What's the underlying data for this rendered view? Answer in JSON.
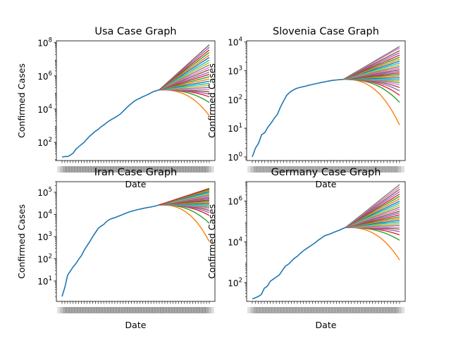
{
  "chart_data": [
    {
      "type": "line",
      "title": "Usa Case Graph",
      "xlabel": "Date",
      "ylabel": "Confirmed Cases",
      "yscale": "log",
      "ylim": [
        8,
        130000000
      ],
      "ytick_labels": [
        "10^2",
        "10^4",
        "10^6",
        "10^8"
      ],
      "ytick_values": [
        100,
        10000,
        1000000,
        100000000
      ],
      "x_tick_note": "overlapping unreadable date tick labels",
      "grid": false,
      "history": {
        "color": "#1f77b4",
        "values": [
          13,
          14,
          14,
          17,
          22,
          38,
          55,
          75,
          100,
          160,
          240,
          330,
          470,
          600,
          850,
          1100,
          1500,
          2000,
          2500,
          3100,
          3900,
          5100,
          7500,
          11000,
          16000,
          22000,
          30000,
          38000,
          45000,
          55000,
          65000,
          78000,
          95000,
          115000,
          130000,
          145000
        ]
      },
      "forecast": {
        "start": 145000,
        "end_values": [
          4000,
          25000,
          55000,
          80000,
          110000,
          150000,
          200000,
          270000,
          360000,
          480000,
          650000,
          900000,
          1250000,
          1700000,
          2400000,
          3300000,
          4600000,
          6500000,
          9000000,
          13000000,
          18000000,
          26000000,
          37000000,
          53000000,
          75000000
        ]
      }
    },
    {
      "type": "line",
      "title": "Slovenia Case Graph",
      "xlabel": "Date",
      "ylabel": "Confirmed Cases",
      "yscale": "log",
      "ylim": [
        0.75,
        11000
      ],
      "ytick_labels": [
        "10^0",
        "10^1",
        "10^2",
        "10^3",
        "10^4"
      ],
      "ytick_values": [
        1,
        10,
        100,
        1000,
        10000
      ],
      "x_tick_note": "overlapping unreadable date tick labels",
      "grid": false,
      "history": {
        "color": "#1f77b4",
        "values": [
          1,
          2,
          3,
          6,
          7,
          11,
          15,
          22,
          30,
          55,
          90,
          140,
          180,
          210,
          240,
          260,
          275,
          290,
          310,
          330,
          350,
          370,
          390,
          410,
          430,
          450,
          470,
          480,
          490,
          500
        ]
      },
      "forecast": {
        "start": 500,
        "end_values": [
          13,
          80,
          140,
          200,
          260,
          320,
          380,
          440,
          500,
          570,
          650,
          740,
          840,
          950,
          1080,
          1230,
          1400,
          1600,
          1850,
          2150,
          2500,
          2950,
          3500,
          4200,
          5000,
          6200,
          7000
        ]
      }
    },
    {
      "type": "line",
      "title": "Iran Case Graph",
      "xlabel": "Date",
      "ylabel": "Confirmed Cases",
      "yscale": "log",
      "ylim": [
        1.2,
        300000
      ],
      "ytick_labels": [
        "10^1",
        "10^2",
        "10^3",
        "10^4",
        "10^5"
      ],
      "ytick_values": [
        10,
        100,
        1000,
        10000,
        100000
      ],
      "x_tick_note": "overlapping unreadable date tick labels",
      "grid": false,
      "history": {
        "color": "#1f77b4",
        "values": [
          2,
          5,
          18,
          28,
          43,
          61,
          95,
          139,
          245,
          388,
          593,
          978,
          1501,
          2336,
          2922,
          3513,
          4747,
          5823,
          6566,
          7161,
          8042,
          9000,
          10075,
          11364,
          12729,
          13938,
          14991,
          16169,
          17361,
          18407,
          19644,
          20610,
          21638,
          23049,
          24811,
          27017
        ]
      },
      "forecast": {
        "start": 27017,
        "end_values": [
          600,
          4000,
          9000,
          12000,
          15000,
          18000,
          21000,
          24000,
          27000,
          31000,
          35000,
          40000,
          45000,
          51000,
          58000,
          66000,
          75000,
          85000,
          96000,
          108000,
          122000,
          135000,
          150000
        ]
      }
    },
    {
      "type": "line",
      "title": "Germany Case Graph",
      "xlabel": "Date",
      "ylabel": "Confirmed Cases",
      "yscale": "log",
      "ylim": [
        12,
        9000000
      ],
      "ytick_labels": [
        "10^2",
        "10^4",
        "10^6"
      ],
      "ytick_values": [
        100,
        10000,
        1000000
      ],
      "x_tick_note": "overlapping unreadable date tick labels",
      "grid": false,
      "history": {
        "color": "#1f77b4",
        "values": [
          16,
          18,
          21,
          26,
          53,
          66,
          117,
          150,
          188,
          240,
          400,
          639,
          795,
          1112,
          1565,
          1966,
          2745,
          3675,
          4599,
          5813,
          7272,
          9257,
          12327,
          15320,
          19848,
          22213,
          24873,
          29056,
          32986,
          37323,
          43938,
          50871
        ]
      },
      "forecast": {
        "start": 50871,
        "end_values": [
          1300,
          12000,
          22000,
          32000,
          42000,
          52000,
          64000,
          78000,
          95000,
          115000,
          140000,
          170000,
          210000,
          260000,
          320000,
          400000,
          500000,
          630000,
          800000,
          1000000,
          1300000,
          1700000,
          2200000,
          2900000,
          3800000,
          5000000,
          6500000
        ]
      }
    }
  ]
}
